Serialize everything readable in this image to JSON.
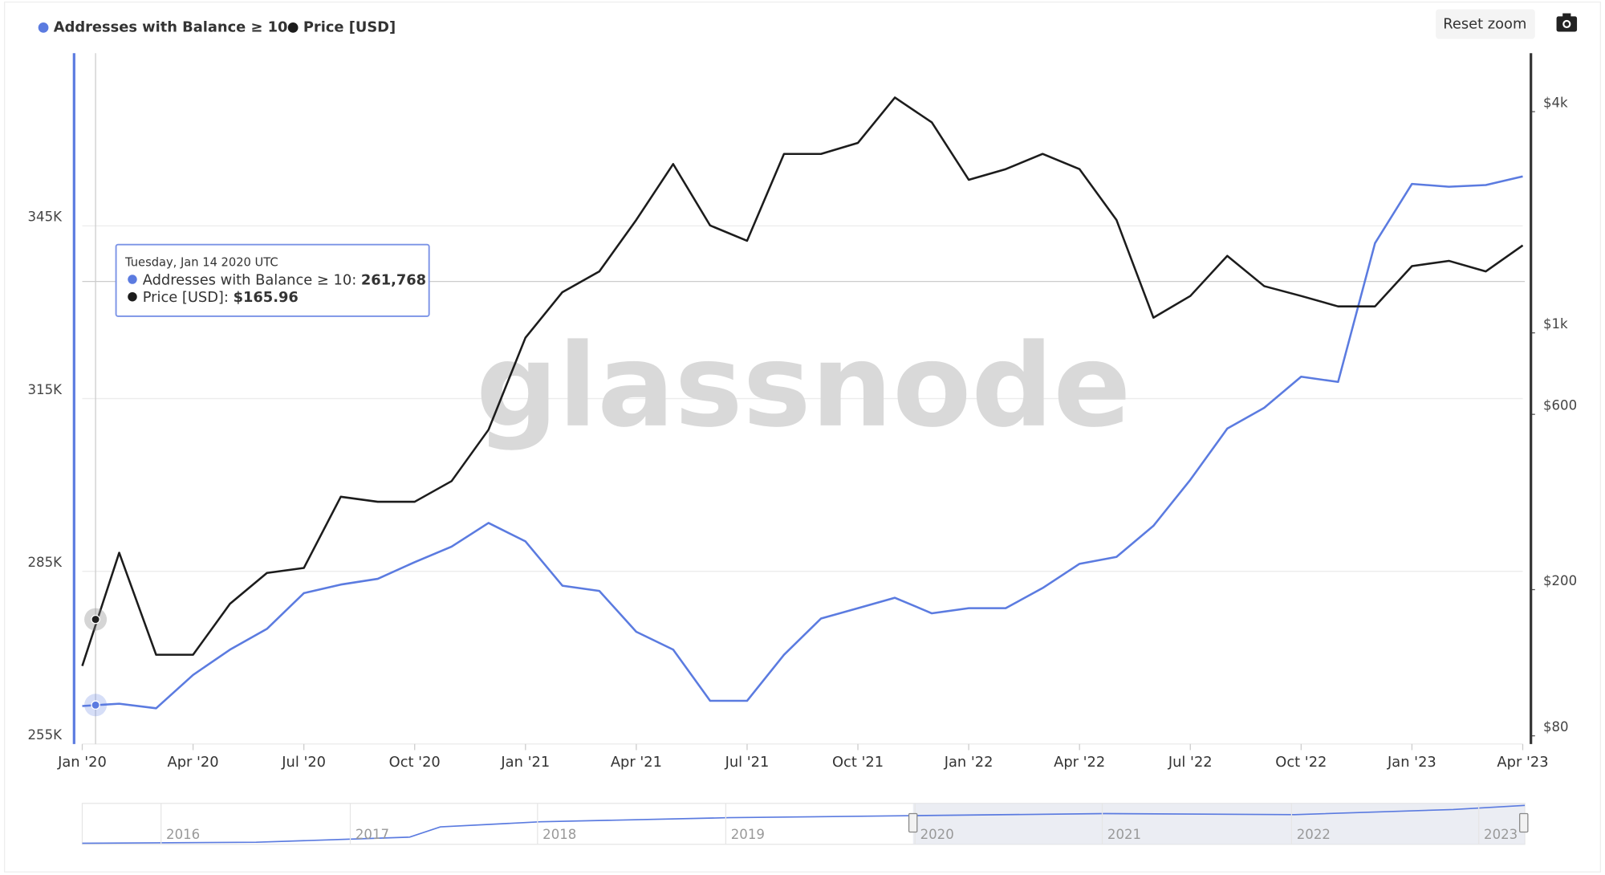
{
  "chart_data": {
    "type": "line",
    "legend": "top-left",
    "reset_button": "Reset zoom",
    "watermark": "glassnode",
    "x": [
      "2020-01",
      "2020-02",
      "2020-03",
      "2020-04",
      "2020-05",
      "2020-06",
      "2020-07",
      "2020-08",
      "2020-09",
      "2020-10",
      "2020-11",
      "2020-12",
      "2021-01",
      "2021-02",
      "2021-03",
      "2021-04",
      "2021-05",
      "2021-06",
      "2021-07",
      "2021-08",
      "2021-09",
      "2021-10",
      "2021-11",
      "2021-12",
      "2022-01",
      "2022-02",
      "2022-03",
      "2022-04",
      "2022-05",
      "2022-06",
      "2022-07",
      "2022-08",
      "2022-09",
      "2022-10",
      "2022-11",
      "2022-12",
      "2023-01",
      "2023-02",
      "2023-03",
      "2023-04"
    ],
    "xlim": [
      "2020-01",
      "2023-04"
    ],
    "xticks": [
      {
        "value": "2020-01",
        "label": "Jan '20"
      },
      {
        "value": "2020-04",
        "label": "Apr '20"
      },
      {
        "value": "2020-07",
        "label": "Jul '20"
      },
      {
        "value": "2020-10",
        "label": "Oct '20"
      },
      {
        "value": "2021-01",
        "label": "Jan '21"
      },
      {
        "value": "2021-04",
        "label": "Apr '21"
      },
      {
        "value": "2021-07",
        "label": "Jul '21"
      },
      {
        "value": "2021-10",
        "label": "Oct '21"
      },
      {
        "value": "2022-01",
        "label": "Jan '22"
      },
      {
        "value": "2022-04",
        "label": "Apr '22"
      },
      {
        "value": "2022-07",
        "label": "Jul '22"
      },
      {
        "value": "2022-10",
        "label": "Oct '22"
      },
      {
        "value": "2023-01",
        "label": "Jan '23"
      },
      {
        "value": "2023-04",
        "label": "Apr '23"
      }
    ],
    "ylim": [
      255000,
      375000
    ],
    "yticks": [
      {
        "value": 255000,
        "label": "255K"
      },
      {
        "value": 285000,
        "label": "285K"
      },
      {
        "value": 315000,
        "label": "315K"
      },
      {
        "value": 345000,
        "label": "345K"
      }
    ],
    "y2lim": [
      76,
      5770
    ],
    "y2scale": "log",
    "y2ticks": [
      {
        "value": 80,
        "label": "$80"
      },
      {
        "value": 200,
        "label": "$200"
      },
      {
        "value": 600,
        "label": "$600"
      },
      {
        "value": 1000,
        "label": "$1k"
      },
      {
        "value": 4000,
        "label": "$4k"
      }
    ],
    "grid": true,
    "series": [
      {
        "name": "Addresses with Balance ≥ 10",
        "color": "#5b7be0",
        "values": [
          261600,
          262000,
          261200,
          267000,
          271400,
          275000,
          281200,
          282700,
          283700,
          286600,
          289300,
          293400,
          290200,
          282500,
          281600,
          274500,
          271400,
          262500,
          262500,
          270500,
          276800,
          278600,
          280400,
          277700,
          278600,
          278600,
          282100,
          286300,
          287500,
          292900,
          300900,
          309800,
          313400,
          318800,
          317900,
          342000,
          352300,
          351800,
          352100,
          353600
        ]
      },
      {
        "name": "Price [USD]",
        "color": "#1c1c1c",
        "axis": "y2",
        "values": [
          124,
          252,
          133,
          133,
          183,
          222,
          229,
          358,
          347,
          347,
          395,
          545,
          970,
          1290,
          1470,
          2030,
          2880,
          1960,
          1780,
          3070,
          3070,
          3290,
          4370,
          3740,
          2610,
          2790,
          3070,
          2790,
          2030,
          1100,
          1260,
          1620,
          1340,
          1260,
          1180,
          1180,
          1520,
          1570,
          1470,
          1730
        ]
      }
    ],
    "tooltip": {
      "date": "Tuesday, Jan 14 2020 UTC",
      "items": [
        {
          "value": 261768,
          "label": "261,768"
        },
        {
          "value": 165.96,
          "label": "$165.96"
        }
      ]
    },
    "navigator": {
      "labels": [
        "2016",
        "2017",
        "2018",
        "2019",
        "2020",
        "2021",
        "2022",
        "2023"
      ]
    }
  }
}
